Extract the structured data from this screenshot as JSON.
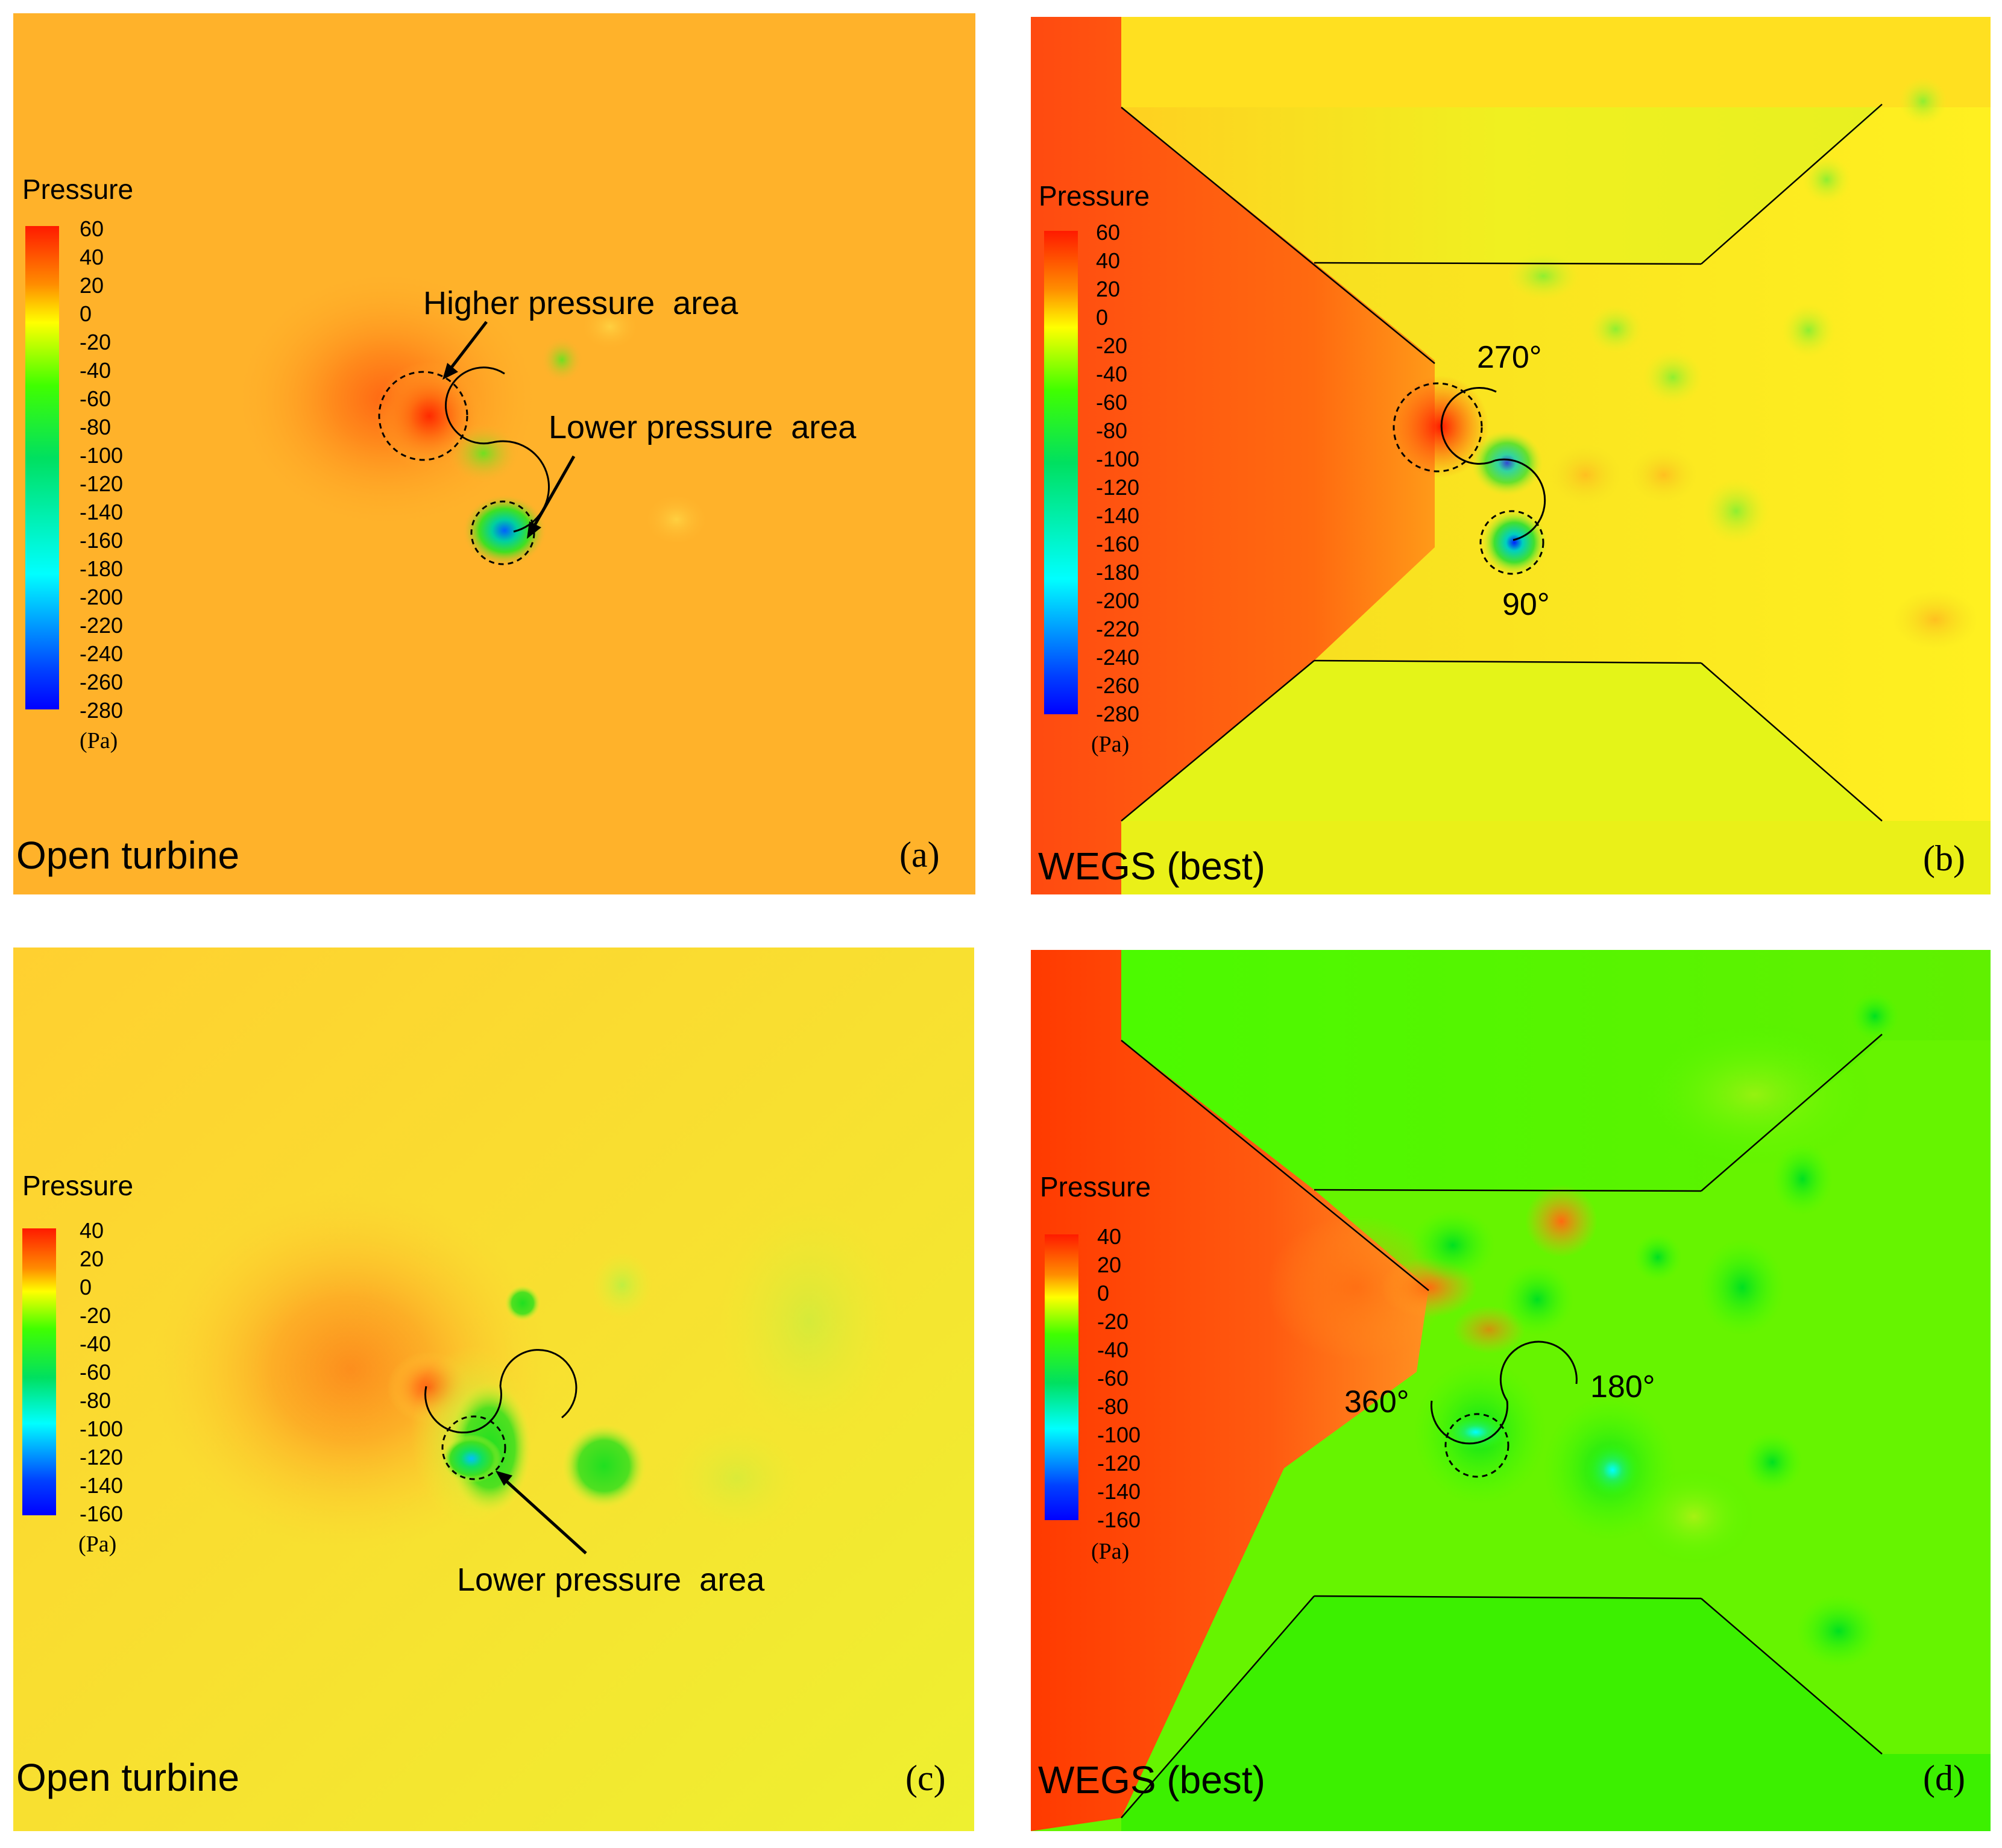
{
  "legend_title": "Pressure",
  "unit": "(Pa)",
  "scale_a": [
    "60",
    "40",
    "20",
    "0",
    "-20",
    "-40",
    "-60",
    "-80",
    "-100",
    "-120",
    "-140",
    "-160",
    "-180",
    "-200",
    "-220",
    "-240",
    "-260",
    "-280"
  ],
  "scale_c": [
    "40",
    "20",
    "0",
    "-20",
    "-40",
    "-60",
    "-80",
    "-100",
    "-120",
    "-140",
    "-160"
  ],
  "colors": {
    "red": "#ff1a00",
    "orange": "#ff8c00",
    "yellow": "#ffff00",
    "green": "#1aff00",
    "cyan": "#00ffff",
    "blue": "#0000ff",
    "open_bg_a": "#ffb22a",
    "open_bg_c": "#ffcc33",
    "wegs_green": "#44ff00"
  },
  "panels": {
    "a": {
      "case": "Open turbine",
      "letter": "(a)",
      "higher": "Higher pressure  area",
      "lower": "Lower pressure  area"
    },
    "b": {
      "case": "WEGS (best)",
      "letter": "(b)",
      "angle_top": "270°",
      "angle_bottom": "90°"
    },
    "c": {
      "case": "Open turbine",
      "letter": "(c)",
      "lower": "Lower pressure  area"
    },
    "d": {
      "case": "WEGS (best)",
      "letter": "(d)",
      "angle_left": "360°",
      "angle_right": "180°"
    }
  }
}
